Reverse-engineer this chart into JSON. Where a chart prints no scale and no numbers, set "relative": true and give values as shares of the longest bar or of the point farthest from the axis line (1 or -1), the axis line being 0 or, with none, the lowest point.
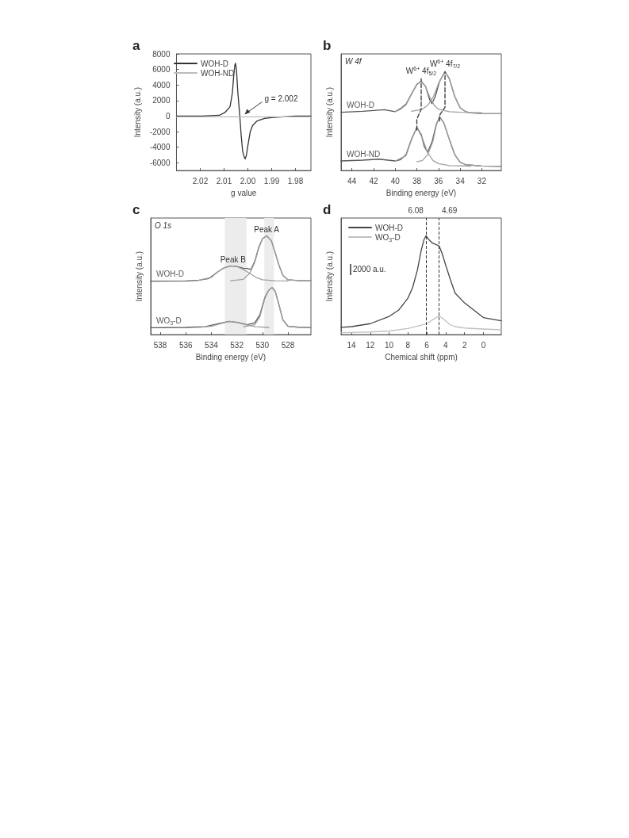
{
  "chart_data": [
    {
      "type": "line",
      "title": "a",
      "xlabel": "g value",
      "ylabel": "Intensity (a.u.)",
      "xlim": [
        2.03,
        1.9735
      ],
      "xticks": [
        2.02,
        2.01,
        {
          "value": 2,
          "label": "2.00"
        },
        1.99,
        1.98
      ],
      "ylim": [
        -7000,
        8000
      ],
      "yticks": [
        -6000,
        -4000,
        -2000,
        0,
        2000,
        4000,
        6000,
        8000
      ],
      "legend": "top left",
      "marker": "none",
      "annotations": [
        {
          "text": "g = 2.002",
          "x": 2.002,
          "y": 0
        }
      ],
      "series": [
        {
          "name": "WOH-D",
          "color": "#333333",
          "x": [
            2.03,
            2.02,
            2.012,
            2.0095,
            2.0075,
            2.0065,
            2.006,
            2.0055,
            2.0052,
            2.0048,
            2.0042,
            2.0036,
            2.0032,
            2.0028,
            2.0022,
            2.0015,
            2.0011,
            2.0006,
            2.0,
            1.999,
            1.998,
            1.996,
            1.993,
            1.99,
            1.98,
            1.9735
          ],
          "values": [
            0,
            0,
            100,
            500,
            1200,
            3000,
            5000,
            6500,
            6800,
            6000,
            3000,
            800,
            -800,
            -2500,
            -4500,
            -5300,
            -5500,
            -5000,
            -3800,
            -2000,
            -1200,
            -600,
            -300,
            -200,
            0,
            0
          ]
        },
        {
          "name": "WOH-ND",
          "color": "#bbbbbb",
          "x": [
            2.03,
            1.9735
          ],
          "values": [
            -100,
            -100
          ]
        }
      ]
    },
    {
      "type": "line",
      "title": "b",
      "subtitle": "W 4f",
      "xlabel": "Binding energy (eV)",
      "ylabel": "Intensity (a.u.)",
      "relative": true,
      "xlim": [
        45,
        30.2
      ],
      "xticks": [
        44,
        42,
        40,
        38,
        36,
        34,
        32
      ],
      "marker": "none",
      "annotations": [
        {
          "text": "W$^{6+}$ 4f$_{5/2}$",
          "x": 37.6,
          "y": 0.93
        },
        {
          "text": "W$^{6+}$ 4f$_{7/2}$",
          "x": 35.4,
          "y": 1.0
        }
      ],
      "series": [
        {
          "name": "WOH-D",
          "color": "#555555",
          "x": [
            45,
            43,
            41,
            40,
            39.5,
            39,
            38.5,
            38,
            37.6,
            37.2,
            36.8,
            36.6,
            36.3,
            35.9,
            35.4,
            35,
            34.5,
            34,
            33.5,
            33,
            32,
            30.2
          ],
          "values": [
            0.59,
            0.6,
            0.616,
            0.596,
            0.627,
            0.673,
            0.775,
            0.872,
            0.903,
            0.852,
            0.711,
            0.678,
            0.749,
            0.903,
            1.0,
            0.928,
            0.749,
            0.634,
            0.596,
            0.583,
            0.578,
            0.575
          ]
        },
        {
          "color": "#a0a0a0",
          "x": [
            40,
            39.5,
            39,
            38.5,
            38,
            37.6,
            37.2,
            36.8,
            36.4,
            36,
            35,
            34,
            32
          ],
          "values": [
            0.596,
            0.62,
            0.665,
            0.77,
            0.87,
            0.903,
            0.85,
            0.74,
            0.66,
            0.62,
            0.595,
            0.59,
            0.585
          ]
        },
        {
          "color": "#a0a0a0",
          "x": [
            38.5,
            37.5,
            37,
            36.5,
            36,
            35.4,
            35,
            34.5,
            34,
            33.5,
            33,
            32,
            30.2
          ],
          "values": [
            0.6,
            0.62,
            0.66,
            0.74,
            0.88,
            1.0,
            0.93,
            0.75,
            0.635,
            0.596,
            0.583,
            0.578,
            0.575
          ]
        },
        {
          "name": "WOH-ND",
          "color": "#555555",
          "x": [
            45,
            43,
            41.5,
            40,
            39.5,
            39,
            38.5,
            38,
            37.6,
            37.3,
            37,
            36.6,
            36.2,
            35.9,
            35.5,
            35,
            34.5,
            34,
            33.5,
            32,
            30.2
          ],
          "values": [
            0.097,
            0.105,
            0.115,
            0.097,
            0.11,
            0.161,
            0.315,
            0.437,
            0.366,
            0.238,
            0.187,
            0.289,
            0.468,
            0.545,
            0.481,
            0.315,
            0.161,
            0.084,
            0.059,
            0.046,
            0.043
          ]
        },
        {
          "color": "#a0a0a0",
          "x": [
            40,
            39,
            38.5,
            38,
            37.5,
            37,
            36.5,
            36,
            35,
            33
          ],
          "values": [
            0.097,
            0.15,
            0.31,
            0.437,
            0.33,
            0.18,
            0.1,
            0.07,
            0.05,
            0.045
          ]
        },
        {
          "color": "#a0a0a0",
          "x": [
            38,
            37.5,
            37,
            36.5,
            36.2,
            35.9,
            35.5,
            35,
            34.5,
            34,
            33.5,
            32,
            30.2
          ],
          "values": [
            0.09,
            0.1,
            0.16,
            0.3,
            0.46,
            0.545,
            0.48,
            0.315,
            0.161,
            0.084,
            0.059,
            0.046,
            0.043
          ]
        },
        {
          "color": "#333333",
          "line_style": "dashed",
          "x": [
            38,
            38,
            37.6,
            37.6
          ],
          "values": [
            0.41,
            0.52,
            0.62,
            0.93
          ]
        },
        {
          "color": "#333333",
          "line_style": "dashed",
          "x": [
            35.9,
            35.9,
            35.4,
            35.4
          ],
          "values": [
            0.5,
            0.56,
            0.64,
            1.0
          ]
        }
      ]
    },
    {
      "type": "line",
      "title": "c",
      "subtitle": "O 1s",
      "xlabel": "Binding energy (eV)",
      "ylabel": "Intensity (a.u.)",
      "relative": true,
      "xlim": [
        538.75,
        526.2
      ],
      "xticks": [
        538,
        536,
        534,
        532,
        530,
        528
      ],
      "marker": "none",
      "annotations": [
        {
          "text": "Peak B",
          "x": 532.3,
          "y": 0.695
        },
        {
          "text": "Peak A",
          "x": 529.67,
          "y": 1.0
        }
      ],
      "bands": [
        {
          "axis": "x",
          "from": 532.95,
          "to": 531.25,
          "color": "#ececec"
        },
        {
          "axis": "x",
          "from": 529.85,
          "to": 529.1,
          "color": "#ececec"
        }
      ],
      "series": [
        {
          "name": "WOH-D",
          "color": "#5a5a5a",
          "x": [
            538.75,
            536,
            535,
            534.2,
            533.5,
            533,
            532.5,
            532,
            531.5,
            531.2,
            530.9,
            530.6,
            530.3,
            530,
            529.67,
            529.3,
            529,
            528.7,
            528.4,
            528,
            527,
            526.2
          ],
          "values": [
            0.541,
            0.544,
            0.55,
            0.568,
            0.634,
            0.676,
            0.695,
            0.69,
            0.671,
            0.67,
            0.66,
            0.74,
            0.88,
            0.97,
            1.0,
            0.95,
            0.83,
            0.7,
            0.6,
            0.555,
            0.545,
            0.545
          ]
        },
        {
          "color": "#a0a0a0",
          "x": [
            532.5,
            531.5,
            531,
            530.6,
            530.3,
            530,
            529.67,
            529.3,
            529,
            528.7,
            528.4,
            528,
            527,
            526.2
          ],
          "values": [
            0.545,
            0.56,
            0.62,
            0.73,
            0.87,
            0.97,
            1.0,
            0.95,
            0.83,
            0.7,
            0.6,
            0.555,
            0.545,
            0.545
          ]
        },
        {
          "color": "#a0a0a0",
          "x": [
            535,
            534,
            533.5,
            533,
            532.5,
            532,
            531.5,
            531,
            530.5,
            530,
            529,
            528
          ],
          "values": [
            0.55,
            0.58,
            0.634,
            0.676,
            0.695,
            0.69,
            0.66,
            0.62,
            0.58,
            0.555,
            0.545,
            0.543
          ]
        },
        {
          "name": "WO$_{3}$-D",
          "color": "#5a5a5a",
          "x": [
            538.75,
            536,
            534.5,
            533.5,
            532.6,
            531.8,
            531.2,
            530.6,
            530.2,
            529.8,
            529.5,
            529.25,
            529,
            528.7,
            528.4,
            528,
            527,
            526.2
          ],
          "values": [
            0.07,
            0.073,
            0.08,
            0.11,
            0.134,
            0.12,
            0.1,
            0.12,
            0.2,
            0.38,
            0.45,
            0.476,
            0.44,
            0.3,
            0.15,
            0.085,
            0.073,
            0.073
          ]
        },
        {
          "color": "#a0a0a0",
          "x": [
            531.5,
            530.6,
            530.2,
            529.8,
            529.5,
            529.25,
            529,
            528.7,
            528.4,
            528,
            527,
            526.2
          ],
          "values": [
            0.08,
            0.1,
            0.18,
            0.37,
            0.45,
            0.476,
            0.44,
            0.3,
            0.15,
            0.085,
            0.073,
            0.073
          ]
        },
        {
          "color": "#a0a0a0",
          "x": [
            535,
            534,
            533.3,
            532.6,
            532,
            531.3,
            530.5,
            529.5
          ],
          "values": [
            0.073,
            0.085,
            0.11,
            0.134,
            0.125,
            0.1,
            0.08,
            0.073
          ]
        }
      ]
    },
    {
      "type": "line",
      "title": "d",
      "xlabel": "Chemical shift (ppm)",
      "ylabel": "Intensity (a.u.)",
      "relative": true,
      "xlim": [
        15.1,
        -1.9
      ],
      "xticks": [
        14,
        12,
        10,
        8,
        6,
        4,
        2,
        0
      ],
      "legend": "top left",
      "marker": "none",
      "annotations": [
        "2000 a.u."
      ],
      "ref_lines": [
        {
          "axis": "x",
          "value": 6.08,
          "label": "6.08",
          "line_style": "dashed",
          "color": "#333333"
        },
        {
          "axis": "x",
          "value": 4.69,
          "label": "4.69",
          "line_style": "dashed",
          "color": "#333333"
        }
      ],
      "series": [
        {
          "name": "WOH-D",
          "color": "#444444",
          "x": [
            15.1,
            14,
            12,
            10,
            9,
            8,
            7.5,
            7,
            6.6,
            6.3,
            6.08,
            5.8,
            5.4,
            5,
            4.69,
            4.4,
            4,
            3.5,
            3,
            2,
            1,
            0,
            -1.9
          ],
          "values": [
            0.074,
            0.081,
            0.111,
            0.185,
            0.247,
            0.37,
            0.48,
            0.654,
            0.852,
            0.963,
            1.0,
            0.963,
            0.926,
            0.911,
            0.896,
            0.827,
            0.704,
            0.556,
            0.42,
            0.321,
            0.247,
            0.173,
            0.141
          ]
        },
        {
          "name": "WO$_{3}$-D",
          "color": "#c0c0c0",
          "x": [
            15.1,
            12,
            10,
            8,
            6.5,
            6,
            5.3,
            4.69,
            4.2,
            3.5,
            3,
            2,
            0,
            -1.9
          ],
          "values": [
            0.02,
            0.027,
            0.037,
            0.062,
            0.099,
            0.111,
            0.156,
            0.19,
            0.156,
            0.099,
            0.081,
            0.067,
            0.057,
            0.049
          ]
        }
      ]
    }
  ]
}
